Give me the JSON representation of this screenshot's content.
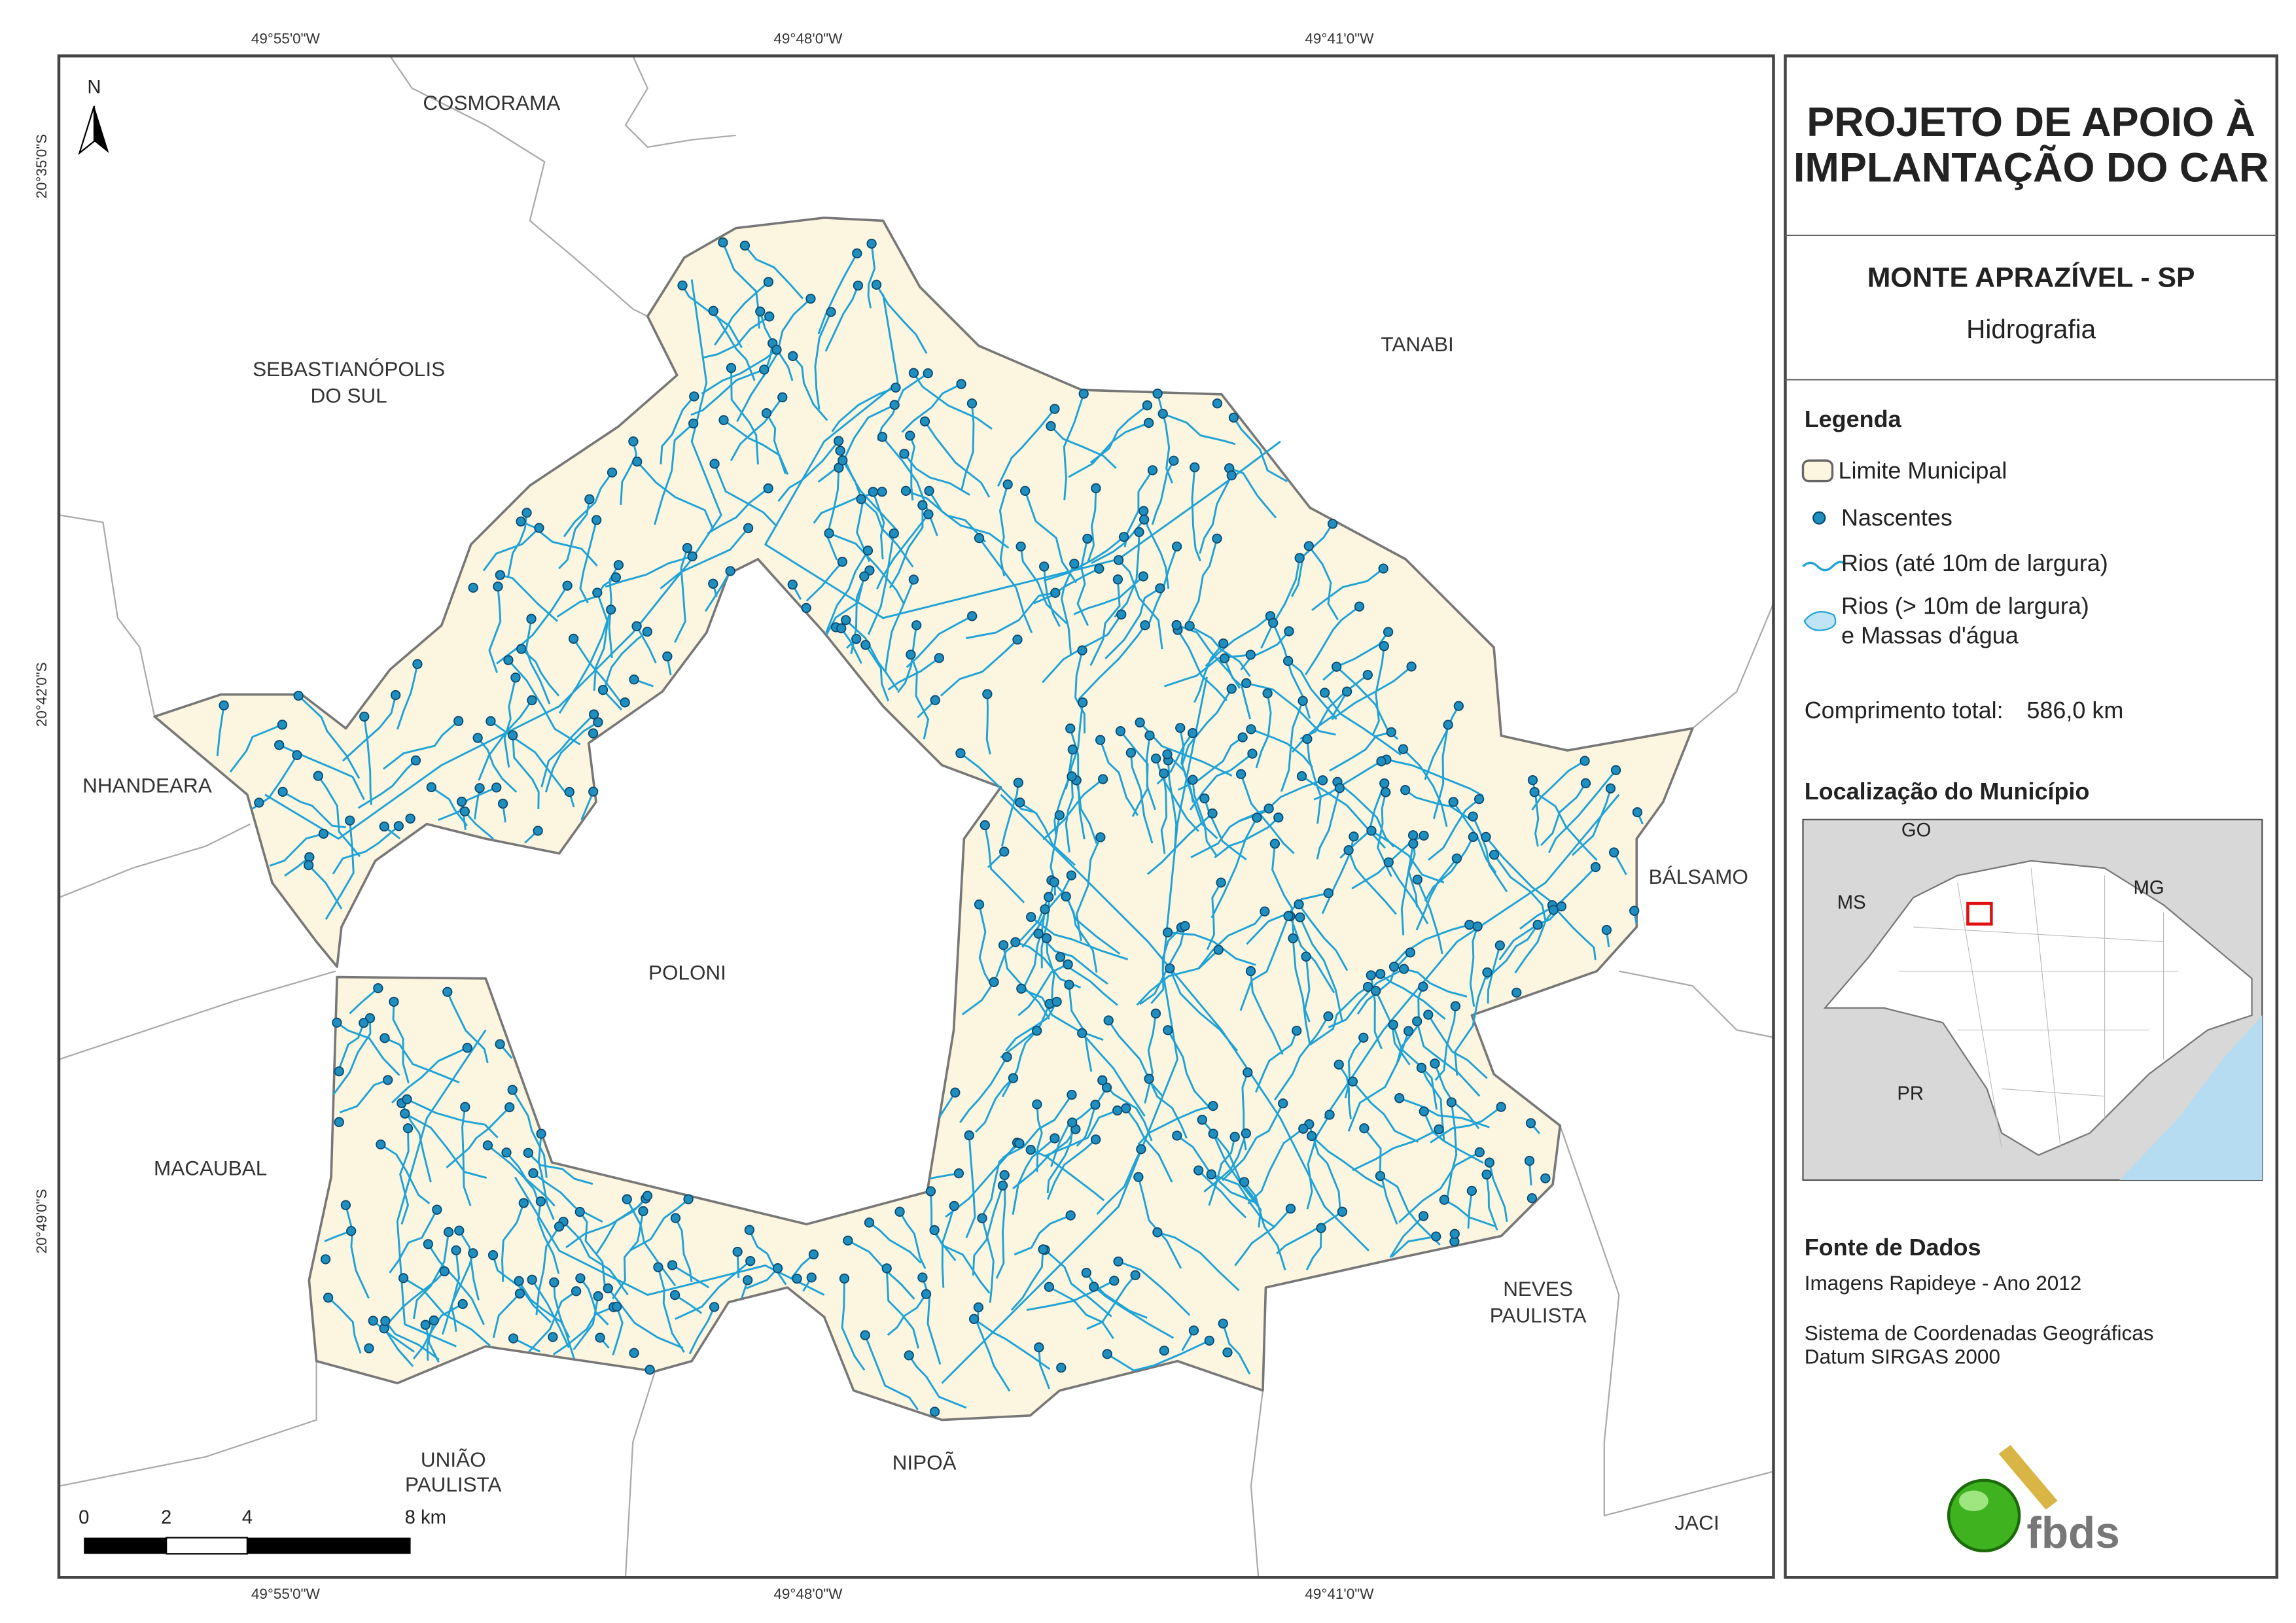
{
  "header": {
    "title_lines": [
      "PROJETO DE APOIO À",
      "IMPLANTAÇÃO DO CAR"
    ],
    "municipality": "MONTE APRAZÍVEL - SP",
    "theme": "Hidrografia"
  },
  "legend": {
    "title": "Legenda",
    "limit": "Limite Municipal",
    "springs": "Nascentes",
    "small_rivers": "Rios (até 10m de largura)",
    "large_rivers": [
      "Rios (> 10m de largura)",
      "e Massas d'água"
    ]
  },
  "total_length": {
    "label": "Comprimento total:",
    "value": "586,0 km"
  },
  "location": {
    "title": "Localização do Município",
    "labels": [
      "GO",
      "MS",
      "MG",
      "PR"
    ]
  },
  "sources": {
    "title": "Fonte de Dados",
    "lines": [
      "Imagens Rapideye - Ano 2012",
      "Sistema de Coordenadas Geográficas",
      "Datum SIRGAS 2000"
    ]
  },
  "logo": "fbds",
  "map": {
    "north": "N",
    "neighbors": [
      [
        "COSMORAMA"
      ],
      [
        "SEBASTIANÓPOLIS",
        "DO SUL"
      ],
      [
        "TANABI"
      ],
      [
        "NHANDEARA"
      ],
      [
        "BÁLSAMO"
      ],
      [
        "POLONI"
      ],
      [
        "MACAUBAL"
      ],
      [
        "NEVES",
        "PAULISTA"
      ],
      [
        "UNIÃO",
        "PAULISTA"
      ],
      [
        "NIPOÃ"
      ],
      [
        "JACI"
      ]
    ],
    "longitudes": [
      "49°55'0\"W",
      "49°48'0\"W",
      "49°41'0\"W"
    ],
    "latitudes": [
      "20°35'0\"S",
      "20°42'0\"S",
      "20°49'0\"S"
    ],
    "scale_labels": [
      "0",
      "2",
      "4",
      "8 km"
    ]
  }
}
